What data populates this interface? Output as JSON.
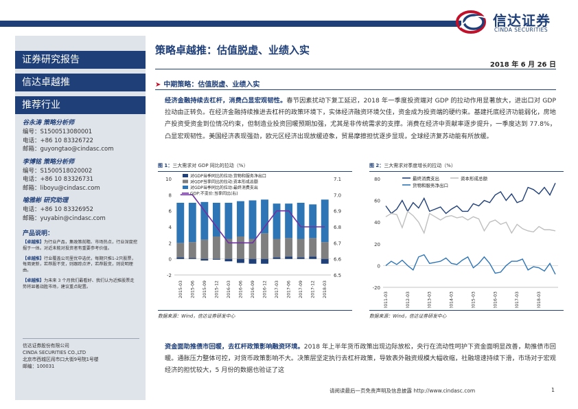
{
  "header": {
    "logo_cn": "信达证券",
    "logo_en": "CINDA SECURITIES"
  },
  "sidebar": {
    "report_type": "证券研究报告",
    "product": "信达卓越推",
    "industry_head": "推荐行业",
    "analysts": [
      {
        "name": "谷永涛   策略分析师",
        "id": "编号：S1500513080001",
        "phone": "电话：+86 10 83326722",
        "email": "邮箱：guyongtao@cindasc.com"
      },
      {
        "name": "李博铭   策略分析师",
        "id": "编号：S1500518020002",
        "phone": "电话：+86 10 83326731",
        "email": "邮箱：liboyu@cindasc.com"
      },
      {
        "name": "喻雅彬   研究助理",
        "phone": "电话：+86 10 83326952",
        "email": "邮箱：yuyabin@cindasc.com"
      }
    ],
    "product_desc_title": "产品说明：",
    "product_desc": [
      {
        "tag": "【卓越推】",
        "text": "为行业产品，集政策前瞻、市场热点，行业深度挖掘于一体。对近未能对投资者有重要参考价值。"
      },
      {
        "tag": "【卓越推】",
        "text": "行业覆盖公司里优中选优，每期只推1-2只股票，每周更新，若荐股不变，则跟踪点评，若荐股变，则说明理由。"
      },
      {
        "tag": "【卓越推】",
        "text": "为未来 3 个月我们最看好、我们认为近推股票走势将显著战胜市场，建议重点配置。"
      }
    ],
    "company": {
      "name_cn": "信达证券股份有限公司",
      "name_en": "CINDA SECURITIES CO.,LTD",
      "address": "北京市西城区闹市口大街9号院1号楼",
      "postcode": "邮编：100031"
    }
  },
  "main": {
    "title": "策略卓越推：估值脱虚、业绩入实",
    "date": "2018 年 6 月 26 日",
    "section": "中期策略：估值脱虚、业绩入实",
    "para1_lead": "经济金融持续去杠杆，消费凸显宏观韧性。",
    "para1_body": "春节因素扰动下复工延迟，2018 年一季度投资端对 GDP 的拉动作用显著放大，进出口对 GDP 拉动由正转负。在经济金融持续推进去杠杆的政策环境下，实体经济融资环境欠佳，资金成为投资端的硬约束。基建托底经济功能弱化，房地产投资受资金到位情况约束，但制造业投资回暖预期加强，尤其是非传统需求的支撑。消费在经济中贡献率逐步提升，一季度达到 77.8%，凸显宏观韧性。美国经济表现强劲，欧元区经济出现放缓迹象，贸易摩擦担忧逐步显现，全球经济复苏动能有所放缓。",
    "para2_lead": "资金面助推债市回暖，去杠杆政策影响融资环境。",
    "para2_body": "2018 年上半年货币政策出现边际放松，央行在流动性呵护下资金面明显改善，助推债市回暖。通胀压力整体可控，对货币政策影响不大。决策层坚定执行去杠杆政策，导致表外融资规模大幅收缩，社融增速持续下滑，市场对于宏观经济的担忧较大，5 月份的数据也验证了这"
  },
  "fig1": {
    "label": "图 1：",
    "caption": "三大需求对 GDP 同比的拉动（%）",
    "source": "数据来源：Wind，信达证券研发中心"
  },
  "fig2": {
    "label": "图 2：",
    "caption": "三大需求对季度增长的拉动（%）",
    "source": "数据来源：Wind，信达证券研发中心"
  },
  "footer": {
    "disclaimer": "请阅读最后一页免责声明及信息披露 http://www.cindasc.com",
    "page": "1"
  },
  "chart_data": [
    {
      "type": "bar",
      "title": "三大需求对 GDP 同比的拉动（%）",
      "categories": [
        "2015-03",
        "2015-06",
        "2015-09",
        "2015-12",
        "2016-03",
        "2016-06",
        "2016-09",
        "2016-12",
        "2017-03",
        "2017-06",
        "2017-09",
        "2017-12",
        "2018-03"
      ],
      "x_tick_labels": [
        "2015-03",
        "2015-06",
        "2015-09",
        "2015-12",
        "2016-03",
        "2016-06",
        "2016-09",
        "2016-12",
        "2017-03",
        "2017-06",
        "2017-09",
        "2017-12",
        "2018-03"
      ],
      "series": [
        {
          "name": "对GDP当季同比的拉动:货物和服务净出口",
          "kind": "bar",
          "color": "#1f3f78",
          "values": [
            0.2,
            0.1,
            -0.2,
            -0.1,
            -0.3,
            -0.5,
            -0.6,
            -0.6,
            0.2,
            0.3,
            0.2,
            0.3,
            -0.6
          ]
        },
        {
          "name": "对GDP当季同比的拉动:资本形成总额",
          "kind": "bar",
          "color": "#7f7f7f",
          "values": [
            1.8,
            2.0,
            2.4,
            2.8,
            2.5,
            2.8,
            2.5,
            3.2,
            2.3,
            2.3,
            2.3,
            2.3,
            2.1
          ]
        },
        {
          "name": "对GDP当季同比的拉动:最终消费支出",
          "kind": "bar",
          "color": "#2e75b6",
          "values": [
            5.0,
            4.9,
            4.7,
            4.2,
            4.5,
            4.4,
            4.8,
            4.2,
            4.4,
            4.3,
            4.5,
            4.2,
            5.3
          ]
        },
        {
          "name": "GDP:不变价:当季同比(右)",
          "kind": "line",
          "color": "#7030a0",
          "axis": "right",
          "values": [
            7.0,
            7.0,
            6.9,
            6.8,
            6.7,
            6.7,
            6.7,
            6.8,
            6.9,
            6.9,
            6.8,
            6.8,
            6.8
          ]
        }
      ],
      "ylim": [
        -2,
        10
      ],
      "yticks": [
        -2,
        0,
        2,
        4,
        6,
        8,
        10
      ],
      "y2lim": [
        6.5,
        7.1
      ],
      "y2ticks": [
        "6.5",
        "6.6",
        "6.7",
        "6.8",
        "6.9",
        "7.0",
        "7.1"
      ],
      "legend": "top"
    },
    {
      "type": "line",
      "title": "三大需求对季度增长的拉动（%）",
      "x_tick_labels": [
        "2011-03",
        "2012-03",
        "2013-03",
        "2014-03",
        "2015-03",
        "2016-03",
        "2017-03",
        "2018-03"
      ],
      "series": [
        {
          "name": "最终消费支出",
          "color": "#1f3f78",
          "values": [
            55,
            48,
            52,
            60,
            50,
            58,
            53,
            62,
            50,
            52,
            54,
            48,
            52,
            55,
            50,
            50,
            57,
            55,
            60,
            58,
            65,
            68,
            60,
            66,
            58,
            60,
            72,
            70,
            66,
            72,
            65,
            76
          ]
        },
        {
          "name": "资本形成总额",
          "color": "#bfbfbf",
          "values": [
            45,
            48,
            47,
            35,
            50,
            46,
            40,
            30,
            48,
            45,
            42,
            45,
            46,
            44,
            45,
            42,
            45,
            43,
            32,
            40,
            42,
            38,
            40,
            30,
            38,
            34,
            32,
            31,
            36,
            33,
            33,
            32
          ]
        },
        {
          "name": "货物和服务净出口",
          "color": "#2e75b6",
          "values": [
            0,
            4,
            1,
            5,
            0,
            -4,
            8,
            10,
            2,
            3,
            4,
            7,
            2,
            1,
            5,
            8,
            -2,
            2,
            8,
            2,
            -7,
            -6,
            0,
            4,
            4,
            6,
            -4,
            -1,
            -2,
            -5,
            2,
            -8
          ]
        }
      ],
      "ylim": [
        -20,
        80
      ],
      "yticks": [
        -20,
        0,
        20,
        40,
        60,
        80
      ],
      "legend": "top"
    }
  ]
}
